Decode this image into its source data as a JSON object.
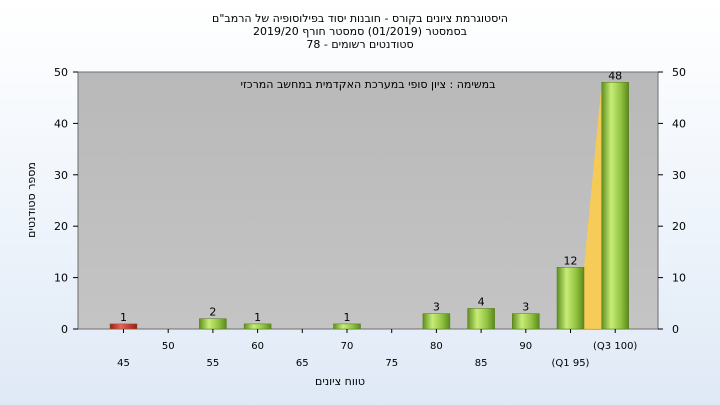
{
  "chart_data": {
    "type": "bar",
    "title": [
      "היסטוגרמת ציונים בקורס - חובנות יסוד בפילוסופיה של הרמב\"ם",
      "בסמסטר  (01/2019)  סמסטר חורף 2019/20",
      "סטודנטים רשומים - 78"
    ],
    "annotation": "במשימה : ציון סופי במערכת האקדמית במחשב המרכזי",
    "xlabel": "טווח ציונים",
    "ylabel": "מספר סטודנטים",
    "ylim": [
      0,
      50
    ],
    "yticks": [
      0,
      10,
      20,
      30,
      40,
      50
    ],
    "grid": false,
    "x_tick_labels": [
      {
        "label": "45",
        "row": 2
      },
      {
        "label": "50",
        "row": 1
      },
      {
        "label": "55",
        "row": 2
      },
      {
        "label": "60",
        "row": 1
      },
      {
        "label": "65",
        "row": 2
      },
      {
        "label": "70",
        "row": 1
      },
      {
        "label": "75",
        "row": 2
      },
      {
        "label": "80",
        "row": 1
      },
      {
        "label": "85",
        "row": 2
      },
      {
        "label": "90",
        "row": 1
      },
      {
        "label": "(Q1 95)",
        "row": 2
      },
      {
        "label": "(Q3 100)",
        "row": 1
      }
    ],
    "categories": [
      "45",
      "50",
      "55",
      "60",
      "65",
      "70",
      "75",
      "80",
      "85",
      "90",
      "95",
      "100"
    ],
    "values": [
      1,
      0,
      2,
      1,
      0,
      1,
      0,
      3,
      4,
      3,
      12,
      48
    ],
    "bar_colors": [
      "#cc2a2a",
      "#8fbf3f",
      "#8fbf3f",
      "#8fbf3f",
      "#8fbf3f",
      "#8fbf3f",
      "#8fbf3f",
      "#8fbf3f",
      "#8fbf3f",
      "#8fbf3f",
      "#8fbf3f",
      "#8fbf3f"
    ],
    "colors": {
      "plot_background": "#bfbfbf",
      "fail_bar": "#cc2a2a",
      "pass_bar": "#8fbf3f",
      "quartile_area": "#ffcc44"
    }
  }
}
